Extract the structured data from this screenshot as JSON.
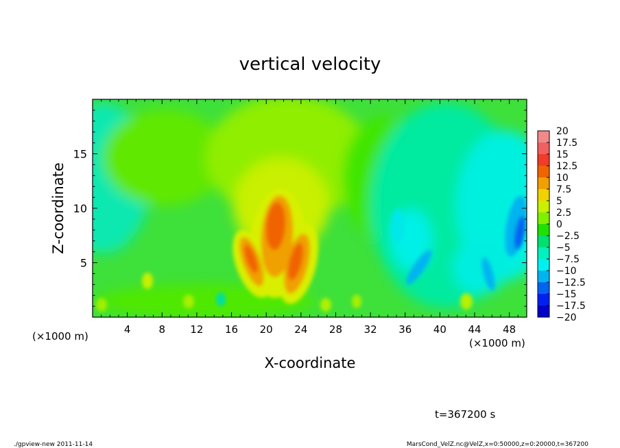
{
  "chart_data": {
    "type": "heatmap",
    "title": "vertical velocity",
    "xlabel": "X-coordinate",
    "ylabel": "Z-coordinate",
    "x_unit_left": "(×1000 m)",
    "x_unit_right": "(×1000 m)",
    "xlim": [
      0,
      50
    ],
    "ylim": [
      0,
      20
    ],
    "x_ticks": [
      4,
      8,
      12,
      16,
      20,
      24,
      28,
      32,
      36,
      40,
      44,
      48
    ],
    "x_tick_labels": [
      "4",
      "8",
      "12",
      "16",
      "20",
      "24",
      "28",
      "32",
      "36",
      "40",
      "44",
      "48"
    ],
    "y_ticks": [
      5,
      10,
      15
    ],
    "y_tick_labels": [
      "5",
      "10",
      "15"
    ],
    "colorbar": {
      "levels": [
        20,
        17.5,
        15,
        12.5,
        10,
        7.5,
        5,
        2.5,
        0,
        -2.5,
        -5,
        -7.5,
        -10,
        -12.5,
        -15,
        -17.5,
        -20
      ],
      "labels": [
        "20",
        "17.5",
        "15",
        "12.5",
        "10",
        "7.5",
        "5",
        "2.5",
        "0",
        "−2.5",
        "−5",
        "−7.5",
        "−10",
        "−12.5",
        "−15",
        "−17.5",
        "−20"
      ],
      "colors": [
        "#f08a8a",
        "#f06060",
        "#f03c28",
        "#f06400",
        "#f0a000",
        "#f0d200",
        "#c8f000",
        "#80f000",
        "#20e000",
        "#00e070",
        "#00f0c0",
        "#00f0f0",
        "#00b4f0",
        "#0064f0",
        "#0020f0",
        "#0000c8",
        "#6a1ac8"
      ]
    },
    "features": [
      {
        "x": 21.0,
        "z": 8.0,
        "value": 13.5
      },
      {
        "x": 18.2,
        "z": 5.2,
        "value": 12.0
      },
      {
        "x": 23.0,
        "z": 5.0,
        "value": 12.5
      },
      {
        "x": 20.5,
        "z": 10.5,
        "value": 6.5
      },
      {
        "x": 38.0,
        "z": 5.0,
        "value": -8.0
      },
      {
        "x": 48.5,
        "z": 7.5,
        "value": -10.0
      },
      {
        "x": 44.0,
        "z": 6.0,
        "value": -6.0
      },
      {
        "x": 2.0,
        "z": 14.0,
        "value": -4.0
      }
    ]
  },
  "time_label": "t=367200 s",
  "footer_left": "./gpview-new  2011-11-14",
  "footer_right": "MarsCond_VelZ.nc@VelZ,x=0:50000,z=0:20000,t=367200"
}
